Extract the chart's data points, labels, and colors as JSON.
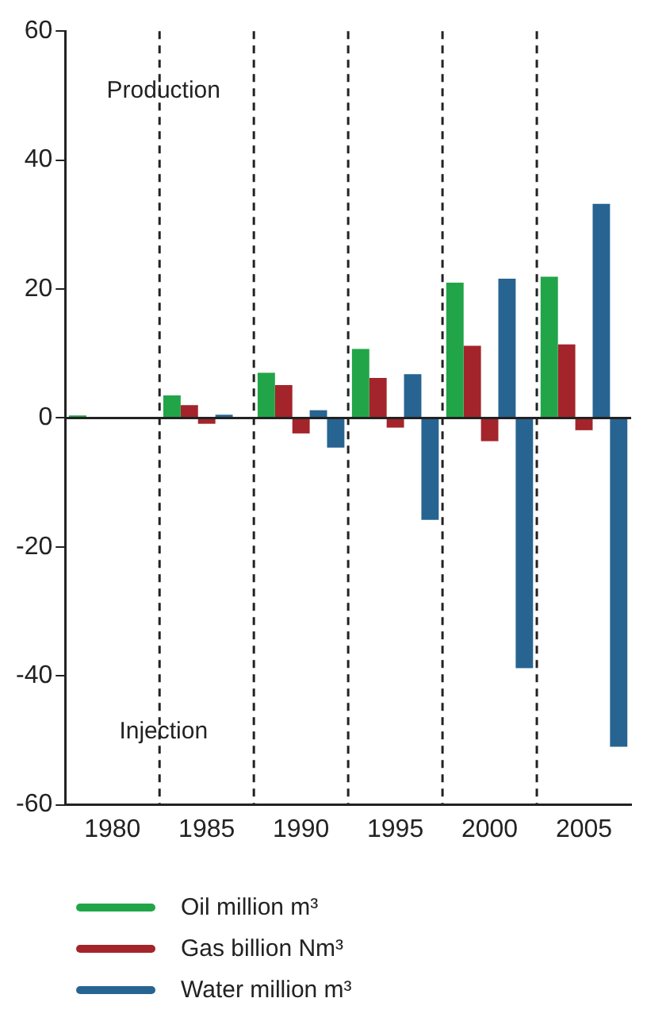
{
  "chart_data": {
    "type": "bar",
    "categories": [
      "1980",
      "1985",
      "1990",
      "1995",
      "2000",
      "2005"
    ],
    "series": [
      {
        "name": "Oil million m³",
        "color": "#21a548",
        "values": [
          0.4,
          3.5,
          7,
          10.7,
          21,
          21.9
        ]
      },
      {
        "name": "Gas billion Nm³",
        "color": "#a3242a",
        "values": [
          null,
          2,
          5.1,
          6.2,
          11.2,
          11.4
        ]
      },
      {
        "color": "#a3242a",
        "values": [
          null,
          -0.9,
          -2.4,
          -1.5,
          -3.6,
          -1.9
        ]
      },
      {
        "name": "Water million m³",
        "color": "#276492",
        "values": [
          null,
          0.5,
          1.2,
          6.8,
          21.6,
          33.2
        ]
      },
      {
        "color": "#276492",
        "values": [
          null,
          null,
          -4.6,
          -15.8,
          -38.8,
          -51
        ]
      }
    ],
    "ylim": [
      -60,
      60
    ],
    "yticks": [
      -60,
      -40,
      -20,
      0,
      20,
      40,
      60
    ],
    "grid": "x",
    "legend": "bottom",
    "annotations": [
      "Production",
      "Injection"
    ]
  }
}
